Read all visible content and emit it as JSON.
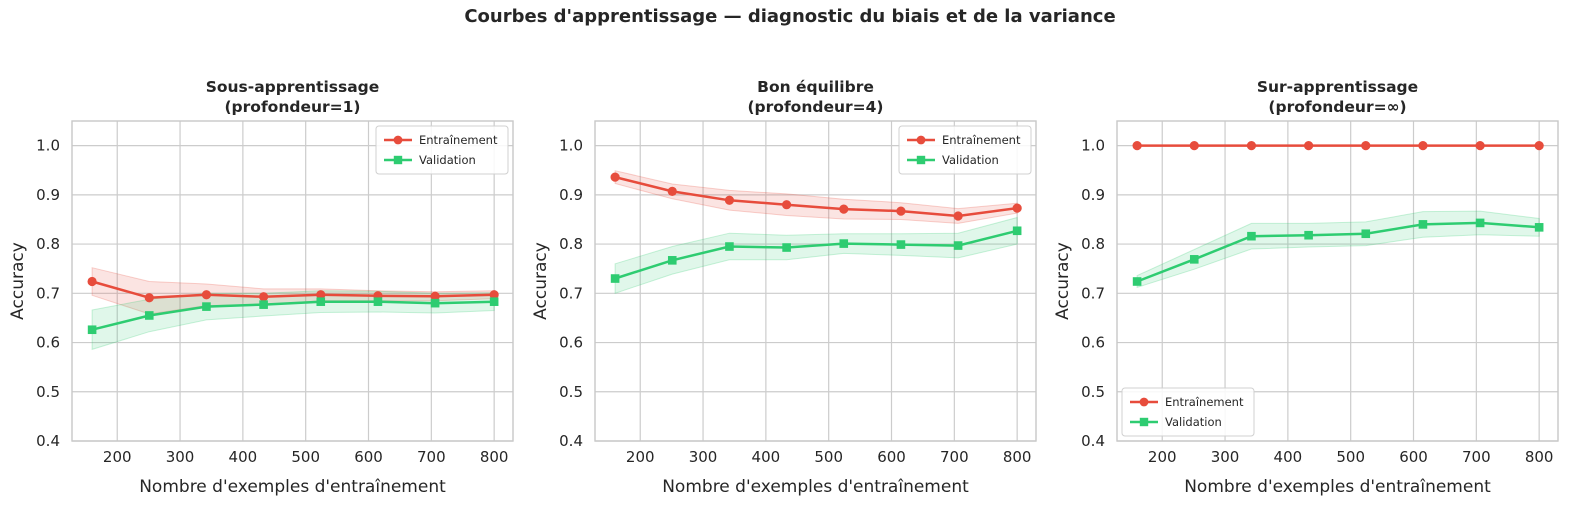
{
  "figure": {
    "suptitle": "Courbes d'apprentissage — diagnostic du biais et de la variance"
  },
  "colors": {
    "train": "#e74c3c",
    "validation": "#2ecc71",
    "grid": "#cccccc",
    "spine": "#c8c8c8"
  },
  "chart_data": [
    {
      "type": "line",
      "title_line1": "Sous-apprentissage",
      "title_line2": "(profondeur=1)",
      "xlabel": "Nombre d'exemples d'entraînement",
      "ylabel": "Accuracy",
      "xlim": [
        128,
        830
      ],
      "ylim": [
        0.4,
        1.05
      ],
      "xticks": [
        200,
        300,
        400,
        500,
        600,
        700,
        800
      ],
      "yticks": [
        0.4,
        0.5,
        0.6,
        0.7,
        0.8,
        0.9,
        1.0
      ],
      "x": [
        160,
        251,
        342,
        433,
        524,
        615,
        706,
        800
      ],
      "legend_position": "upper right",
      "series": [
        {
          "name": "Entraînement",
          "key": "train",
          "marker": "circle",
          "values": [
            0.724,
            0.691,
            0.697,
            0.693,
            0.697,
            0.695,
            0.694,
            0.697
          ],
          "std": [
            0.028,
            0.033,
            0.022,
            0.016,
            0.012,
            0.01,
            0.009,
            0.008
          ]
        },
        {
          "name": "Validation",
          "key": "validation",
          "marker": "square",
          "values": [
            0.626,
            0.655,
            0.673,
            0.677,
            0.683,
            0.683,
            0.68,
            0.683
          ],
          "std": [
            0.04,
            0.033,
            0.027,
            0.023,
            0.022,
            0.021,
            0.02,
            0.018
          ]
        }
      ]
    },
    {
      "type": "line",
      "title_line1": "Bon équilibre",
      "title_line2": "(profondeur=4)",
      "xlabel": "Nombre d'exemples d'entraînement",
      "ylabel": "Accuracy",
      "xlim": [
        128,
        830
      ],
      "ylim": [
        0.4,
        1.05
      ],
      "xticks": [
        200,
        300,
        400,
        500,
        600,
        700,
        800
      ],
      "yticks": [
        0.4,
        0.5,
        0.6,
        0.7,
        0.8,
        0.9,
        1.0
      ],
      "x": [
        160,
        251,
        342,
        433,
        524,
        615,
        706,
        800
      ],
      "legend_position": "upper right",
      "series": [
        {
          "name": "Entraînement",
          "key": "train",
          "marker": "circle",
          "values": [
            0.936,
            0.907,
            0.889,
            0.88,
            0.871,
            0.867,
            0.857,
            0.873
          ],
          "std": [
            0.013,
            0.015,
            0.02,
            0.022,
            0.02,
            0.017,
            0.015,
            0.01
          ]
        },
        {
          "name": "Validation",
          "key": "validation",
          "marker": "square",
          "values": [
            0.73,
            0.767,
            0.795,
            0.793,
            0.801,
            0.799,
            0.797,
            0.827
          ],
          "std": [
            0.03,
            0.028,
            0.027,
            0.025,
            0.02,
            0.022,
            0.025,
            0.027
          ]
        }
      ]
    },
    {
      "type": "line",
      "title_line1": "Sur-apprentissage",
      "title_line2": "(profondeur=∞)",
      "xlabel": "Nombre d'exemples d'entraînement",
      "ylabel": "Accuracy",
      "xlim": [
        128,
        830
      ],
      "ylim": [
        0.4,
        1.05
      ],
      "xticks": [
        200,
        300,
        400,
        500,
        600,
        700,
        800
      ],
      "yticks": [
        0.4,
        0.5,
        0.6,
        0.7,
        0.8,
        0.9,
        1.0
      ],
      "x": [
        160,
        251,
        342,
        433,
        524,
        615,
        706,
        800
      ],
      "legend_position": "lower left",
      "series": [
        {
          "name": "Entraînement",
          "key": "train",
          "marker": "circle",
          "values": [
            1.0,
            1.0,
            1.0,
            1.0,
            1.0,
            1.0,
            1.0,
            1.0
          ],
          "std": [
            0,
            0,
            0,
            0,
            0,
            0,
            0,
            0
          ]
        },
        {
          "name": "Validation",
          "key": "validation",
          "marker": "square",
          "values": [
            0.724,
            0.769,
            0.816,
            0.818,
            0.821,
            0.84,
            0.843,
            0.834
          ],
          "std": [
            0.012,
            0.02,
            0.026,
            0.024,
            0.024,
            0.026,
            0.024,
            0.018
          ]
        }
      ]
    }
  ]
}
